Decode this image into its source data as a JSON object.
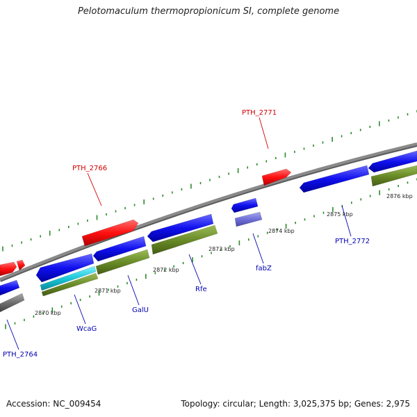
{
  "title": "Pelotomaculum thermopropionicum SI, complete genome",
  "accession": "Accession: NC_009454",
  "summary": "Topology: circular; Length: 3,025,375 bp; Genes: 2,975",
  "kbp_labels": [
    {
      "text": "2870 kbp",
      "pos": 2870
    },
    {
      "text": "2871 kbp",
      "pos": 2871
    },
    {
      "text": "2872 kbp",
      "pos": 2872
    },
    {
      "text": "2873 kbp",
      "pos": 2873
    },
    {
      "text": "2874 kbp",
      "pos": 2874
    },
    {
      "text": "2875 kbp",
      "pos": 2875
    },
    {
      "text": "2876 kbp",
      "pos": 2876
    }
  ],
  "gene_labels": [
    {
      "text": "PTH_2771",
      "strand": "plus"
    },
    {
      "text": "PTH_2766",
      "strand": "plus"
    },
    {
      "text": "PTH_2772",
      "strand": "minus"
    },
    {
      "text": "fabZ",
      "strand": "minus"
    },
    {
      "text": "Rfe",
      "strand": "minus"
    },
    {
      "text": "GalU",
      "strand": "minus"
    },
    {
      "text": "WcaG",
      "strand": "minus"
    },
    {
      "text": "PTH_2764",
      "strand": "minus"
    }
  ],
  "colors": {
    "plus_gene": "#ff1010",
    "minus_gene": "#1010ee",
    "cds": "#6a8c28",
    "rna": "#19c8d8",
    "other": "#7070d8",
    "pseudo": "#707070",
    "backbone": "#8a8a8a",
    "tick": "#2a8a2a",
    "label_plus": "#d00000",
    "label_minus": "#0000b0"
  }
}
